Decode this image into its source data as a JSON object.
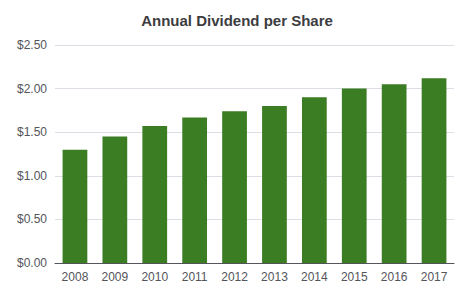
{
  "chart_data": {
    "type": "bar",
    "title": "Annual Dividend per Share",
    "categories": [
      "2008",
      "2009",
      "2010",
      "2011",
      "2012",
      "2013",
      "2014",
      "2015",
      "2016",
      "2017"
    ],
    "values": [
      1.3,
      1.45,
      1.57,
      1.67,
      1.74,
      1.8,
      1.9,
      2.0,
      2.05,
      2.12
    ],
    "color": "#3a7d23",
    "ylim": [
      0,
      2.5
    ],
    "yticks": [
      {
        "value": 0.0,
        "label": "$0.00"
      },
      {
        "value": 0.5,
        "label": "$0.50"
      },
      {
        "value": 1.0,
        "label": "$1.00"
      },
      {
        "value": 1.5,
        "label": "$1.50"
      },
      {
        "value": 2.0,
        "label": "$2.00"
      },
      {
        "value": 2.5,
        "label": "$2.50"
      }
    ],
    "grid": true
  }
}
